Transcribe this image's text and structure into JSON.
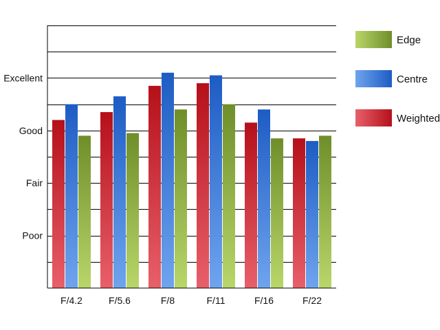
{
  "chart_data": {
    "type": "bar",
    "title": "",
    "xlabel": "",
    "ylabel": "",
    "categories": [
      "F/4.2",
      "F/5.6",
      "F/8",
      "F/11",
      "F/16",
      "F/22"
    ],
    "series": [
      {
        "name": "Weighted",
        "values": [
          6.4,
          6.7,
          7.7,
          7.8,
          6.3,
          5.7
        ]
      },
      {
        "name": "Centre",
        "values": [
          7.0,
          7.3,
          8.2,
          8.1,
          6.8,
          5.6
        ]
      },
      {
        "name": "Edge",
        "values": [
          5.8,
          5.9,
          6.8,
          7.0,
          5.7,
          5.8
        ]
      }
    ],
    "ylim": [
      0,
      10
    ],
    "y_ticks": [
      {
        "value": 2,
        "label": "Poor"
      },
      {
        "value": 4,
        "label": "Fair"
      },
      {
        "value": 6,
        "label": "Good"
      },
      {
        "value": 8,
        "label": "Excellent"
      }
    ],
    "grid": true,
    "legend_position": "right",
    "legend_order": [
      "Edge",
      "Centre",
      "Weighted"
    ],
    "colors": {
      "Weighted": {
        "top": "#b5101a",
        "bottom": "#e8606a",
        "swatch_left": "#e8606a",
        "swatch_right": "#b5101a"
      },
      "Centre": {
        "top": "#1d5cc4",
        "bottom": "#6fa4ee",
        "swatch_left": "#6fa4ee",
        "swatch_right": "#1d5cc4"
      },
      "Edge": {
        "top": "#6f8e2a",
        "bottom": "#b9d66a",
        "swatch_left": "#b9d66a",
        "swatch_right": "#6f8e2a"
      }
    }
  }
}
